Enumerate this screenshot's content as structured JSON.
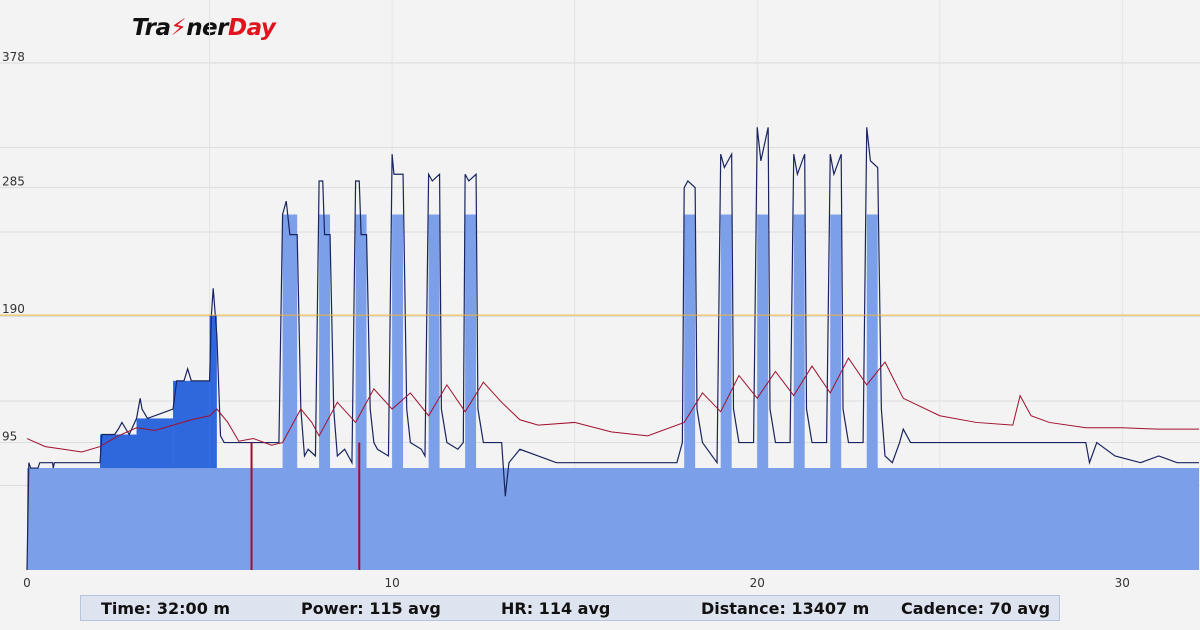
{
  "logo": {
    "part1": "Tra",
    "part2": "ner",
    "part3": "Day",
    "bolt": "⚡"
  },
  "colors": {
    "target_fill": "#7b9fe8",
    "above_target_fill": "#2f68dd",
    "power_line": "#1a2460",
    "hr_line": "#a0102e",
    "ftp_line": "#f0b43c",
    "grid": "#dddddd"
  },
  "stats": {
    "time": "Time: 32:00 m",
    "power": "Power: 115 avg",
    "hr": "HR: 114 avg",
    "distance": "Distance: 13407 m",
    "cadence": "Cadence: 70 avg"
  },
  "chart_data": {
    "type": "area",
    "x_unit": "minutes",
    "xlim": [
      0,
      32.1
    ],
    "ylim": [
      0,
      410
    ],
    "y_ticks": [
      95,
      190,
      285,
      378
    ],
    "x_ticks": [
      0,
      10,
      20,
      30
    ],
    "ftp_line": 190,
    "grid": true,
    "series": [
      {
        "kind": "target_power_steps",
        "points": [
          [
            0,
            0
          ],
          [
            0,
            76
          ],
          [
            2,
            76
          ],
          [
            2,
            76
          ],
          [
            5,
            76
          ],
          [
            5,
            76
          ],
          [
            7,
            76
          ],
          [
            7,
            265
          ],
          [
            7.4,
            265
          ],
          [
            7.4,
            76
          ],
          [
            8,
            76
          ],
          [
            8,
            265
          ],
          [
            8.3,
            265
          ],
          [
            8.3,
            76
          ],
          [
            9,
            76
          ],
          [
            9,
            265
          ],
          [
            9.3,
            265
          ],
          [
            9.3,
            76
          ],
          [
            10,
            76
          ],
          [
            10,
            265
          ],
          [
            10.3,
            265
          ],
          [
            10.3,
            76
          ],
          [
            11,
            76
          ],
          [
            11,
            265
          ],
          [
            11.3,
            265
          ],
          [
            11.3,
            76
          ],
          [
            12,
            76
          ],
          [
            12,
            265
          ],
          [
            12.3,
            265
          ],
          [
            12.3,
            76
          ],
          [
            18,
            76
          ],
          [
            18,
            265
          ],
          [
            18.3,
            265
          ],
          [
            18.3,
            76
          ],
          [
            19,
            76
          ],
          [
            19,
            265
          ],
          [
            19.3,
            265
          ],
          [
            19.3,
            76
          ],
          [
            20,
            76
          ],
          [
            20,
            265
          ],
          [
            20.3,
            265
          ],
          [
            20.3,
            76
          ],
          [
            21,
            76
          ],
          [
            21,
            265
          ],
          [
            21.3,
            265
          ],
          [
            21.3,
            76
          ],
          [
            22,
            76
          ],
          [
            22,
            265
          ],
          [
            22.3,
            265
          ],
          [
            22.3,
            76
          ],
          [
            23,
            76
          ],
          [
            23,
            265
          ],
          [
            23.3,
            265
          ],
          [
            23.3,
            76
          ],
          [
            32.1,
            76
          ],
          [
            32.1,
            0
          ]
        ],
        "warmup_blocks": [
          [
            [
              2,
              4
            ],
            [
              2,
              101
            ]
          ],
          [
            [
              3,
              4
            ],
            [
              3,
              113
            ]
          ],
          [
            [
              4,
              5
            ],
            [
              4,
              141
            ]
          ],
          [
            [
              5,
              5.2
            ],
            [
              5,
              190
            ]
          ]
        ]
      },
      {
        "kind": "actual_power",
        "points": [
          [
            0,
            0
          ],
          [
            0.05,
            80
          ],
          [
            0.1,
            76
          ],
          [
            0.3,
            76
          ],
          [
            0.35,
            80
          ],
          [
            0.7,
            80
          ],
          [
            0.72,
            76
          ],
          [
            0.75,
            80
          ],
          [
            1.5,
            80
          ],
          [
            2,
            80
          ],
          [
            2.05,
            101
          ],
          [
            2.4,
            101
          ],
          [
            2.5,
            105
          ],
          [
            2.6,
            110
          ],
          [
            2.8,
            101
          ],
          [
            3,
            113
          ],
          [
            3.1,
            128
          ],
          [
            3.15,
            120
          ],
          [
            3.3,
            113
          ],
          [
            4,
            120
          ],
          [
            4.1,
            141
          ],
          [
            4.3,
            141
          ],
          [
            4.4,
            150
          ],
          [
            4.5,
            141
          ],
          [
            5,
            141
          ],
          [
            5.05,
            190
          ],
          [
            5.1,
            210
          ],
          [
            5.2,
            175
          ],
          [
            5.3,
            100
          ],
          [
            5.4,
            95
          ],
          [
            5.8,
            95
          ],
          [
            6.5,
            95
          ],
          [
            6.9,
            95
          ],
          [
            7,
            265
          ],
          [
            7.1,
            275
          ],
          [
            7.2,
            250
          ],
          [
            7.4,
            250
          ],
          [
            7.5,
            120
          ],
          [
            7.6,
            85
          ],
          [
            7.7,
            90
          ],
          [
            7.9,
            85
          ],
          [
            8,
            290
          ],
          [
            8.1,
            290
          ],
          [
            8.15,
            250
          ],
          [
            8.3,
            250
          ],
          [
            8.4,
            120
          ],
          [
            8.5,
            85
          ],
          [
            8.7,
            90
          ],
          [
            8.9,
            80
          ],
          [
            9,
            290
          ],
          [
            9.1,
            290
          ],
          [
            9.15,
            250
          ],
          [
            9.3,
            250
          ],
          [
            9.4,
            120
          ],
          [
            9.5,
            95
          ],
          [
            9.6,
            90
          ],
          [
            9.9,
            85
          ],
          [
            10,
            310
          ],
          [
            10.05,
            295
          ],
          [
            10.3,
            295
          ],
          [
            10.4,
            120
          ],
          [
            10.5,
            95
          ],
          [
            10.8,
            90
          ],
          [
            10.9,
            85
          ],
          [
            11,
            295
          ],
          [
            11.1,
            290
          ],
          [
            11.3,
            295
          ],
          [
            11.35,
            120
          ],
          [
            11.5,
            95
          ],
          [
            11.8,
            90
          ],
          [
            11.95,
            95
          ],
          [
            12,
            295
          ],
          [
            12.1,
            290
          ],
          [
            12.3,
            295
          ],
          [
            12.35,
            120
          ],
          [
            12.5,
            95
          ],
          [
            13,
            95
          ],
          [
            13.1,
            55
          ],
          [
            13.2,
            80
          ],
          [
            13.5,
            90
          ],
          [
            14,
            85
          ],
          [
            14.5,
            80
          ],
          [
            15,
            80
          ],
          [
            15.8,
            80
          ],
          [
            16,
            80
          ],
          [
            17,
            80
          ],
          [
            17.8,
            80
          ],
          [
            17.95,
            95
          ],
          [
            18,
            285
          ],
          [
            18.1,
            290
          ],
          [
            18.3,
            285
          ],
          [
            18.35,
            120
          ],
          [
            18.5,
            95
          ],
          [
            18.9,
            80
          ],
          [
            19,
            310
          ],
          [
            19.1,
            300
          ],
          [
            19.3,
            310
          ],
          [
            19.35,
            120
          ],
          [
            19.5,
            95
          ],
          [
            19.9,
            95
          ],
          [
            20,
            330
          ],
          [
            20.1,
            305
          ],
          [
            20.3,
            330
          ],
          [
            20.35,
            120
          ],
          [
            20.5,
            95
          ],
          [
            20.9,
            95
          ],
          [
            21,
            310
          ],
          [
            21.1,
            295
          ],
          [
            21.3,
            310
          ],
          [
            21.35,
            120
          ],
          [
            21.5,
            95
          ],
          [
            21.9,
            95
          ],
          [
            22,
            310
          ],
          [
            22.1,
            295
          ],
          [
            22.3,
            310
          ],
          [
            22.35,
            120
          ],
          [
            22.5,
            95
          ],
          [
            22.9,
            95
          ],
          [
            23,
            330
          ],
          [
            23.1,
            305
          ],
          [
            23.3,
            300
          ],
          [
            23.4,
            120
          ],
          [
            23.5,
            85
          ],
          [
            23.7,
            80
          ],
          [
            23.9,
            95
          ],
          [
            24,
            105
          ],
          [
            24.2,
            95
          ],
          [
            25,
            95
          ],
          [
            26,
            95
          ],
          [
            27,
            95
          ],
          [
            28,
            95
          ],
          [
            29,
            95
          ],
          [
            29.1,
            80
          ],
          [
            29.3,
            95
          ],
          [
            29.8,
            85
          ],
          [
            30.5,
            80
          ],
          [
            31,
            85
          ],
          [
            31.5,
            80
          ],
          [
            32.1,
            80
          ]
        ]
      },
      {
        "kind": "heart_rate",
        "points": [
          [
            0,
            98
          ],
          [
            0.5,
            92
          ],
          [
            1,
            90
          ],
          [
            1.5,
            88
          ],
          [
            2,
            92
          ],
          [
            2.5,
            100
          ],
          [
            3,
            106
          ],
          [
            3.5,
            104
          ],
          [
            4,
            108
          ],
          [
            4.5,
            112
          ],
          [
            5,
            115
          ],
          [
            5.2,
            120
          ],
          [
            5.5,
            110
          ],
          [
            5.8,
            96
          ],
          [
            6.2,
            98
          ],
          [
            6.7,
            93
          ],
          [
            7,
            95
          ],
          [
            7.5,
            120
          ],
          [
            7.8,
            110
          ],
          [
            8,
            100
          ],
          [
            8.5,
            125
          ],
          [
            9,
            110
          ],
          [
            9.5,
            135
          ],
          [
            10,
            120
          ],
          [
            10.5,
            132
          ],
          [
            11,
            115
          ],
          [
            11.5,
            138
          ],
          [
            12,
            118
          ],
          [
            12.5,
            140
          ],
          [
            13,
            125
          ],
          [
            13.5,
            112
          ],
          [
            14,
            108
          ],
          [
            15,
            110
          ],
          [
            16,
            103
          ],
          [
            17,
            100
          ],
          [
            18,
            110
          ],
          [
            18.5,
            132
          ],
          [
            19,
            118
          ],
          [
            19.5,
            145
          ],
          [
            20,
            128
          ],
          [
            20.5,
            148
          ],
          [
            21,
            130
          ],
          [
            21.5,
            152
          ],
          [
            22,
            132
          ],
          [
            22.5,
            158
          ],
          [
            23,
            138
          ],
          [
            23.5,
            155
          ],
          [
            24,
            128
          ],
          [
            25,
            115
          ],
          [
            26,
            110
          ],
          [
            27,
            108
          ],
          [
            27.2,
            130
          ],
          [
            27.5,
            115
          ],
          [
            28,
            110
          ],
          [
            29,
            106
          ],
          [
            30,
            106
          ],
          [
            31,
            105
          ],
          [
            32.1,
            105
          ]
        ]
      }
    ]
  }
}
